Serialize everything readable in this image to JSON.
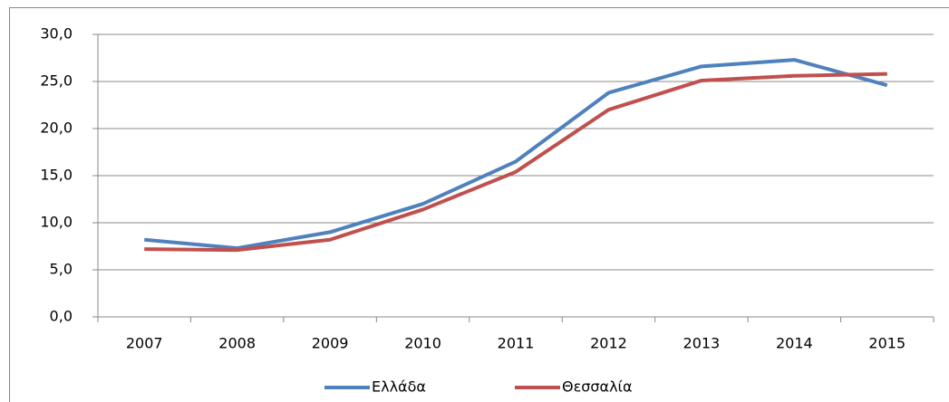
{
  "chart_data": {
    "type": "line",
    "categories": [
      "2007",
      "2008",
      "2009",
      "2010",
      "2011",
      "2012",
      "2013",
      "2014",
      "2015"
    ],
    "series": [
      {
        "name": "Ελλάδα",
        "color": "#4f81bd",
        "values": [
          8.2,
          7.3,
          9.0,
          12.0,
          16.5,
          23.8,
          26.6,
          27.3,
          24.6
        ]
      },
      {
        "name": "Θεσσαλία",
        "color": "#c0504d",
        "values": [
          7.2,
          7.1,
          8.2,
          11.4,
          15.4,
          22.0,
          25.1,
          25.6,
          25.8
        ]
      }
    ],
    "ylim": [
      0,
      30
    ],
    "yticks": [
      {
        "value": 0,
        "label": "0,0"
      },
      {
        "value": 5,
        "label": "5,0"
      },
      {
        "value": 10,
        "label": "10,0"
      },
      {
        "value": 15,
        "label": "15,0"
      },
      {
        "value": 20,
        "label": "20,0"
      },
      {
        "value": 25,
        "label": "25,0"
      },
      {
        "value": 30,
        "label": "30,0"
      }
    ],
    "grid": true,
    "legend": "bottom"
  }
}
